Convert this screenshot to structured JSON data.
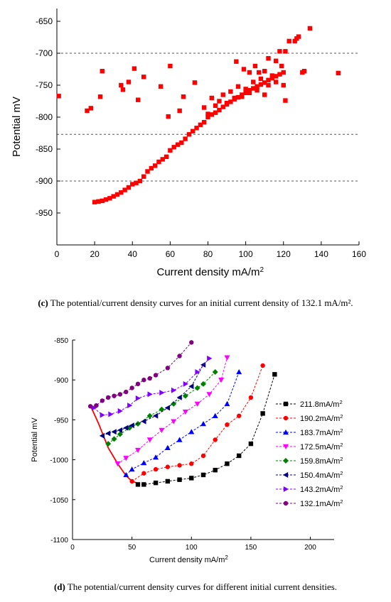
{
  "captions": {
    "c_letter": "(c)",
    "c_text": " The potential/current density curves for an initial current density of 132.1 mA/m².",
    "d_letter": "(d)",
    "d_text": " The potential/current density curves for different initial current densities."
  },
  "chart_data": [
    {
      "type": "scatter",
      "xlabel": "Current density mA/m²",
      "ylabel": "Potential mV",
      "xlim": [
        0,
        160
      ],
      "ylim": [
        -1000,
        -630
      ],
      "xticks": [
        0,
        20,
        40,
        60,
        80,
        100,
        120,
        140,
        160
      ],
      "yticks": [
        -650,
        -700,
        -750,
        -800,
        -850,
        -900,
        -950
      ],
      "reference_lines_y": [
        -700,
        -827,
        -900
      ],
      "marker": "square",
      "color": "#ff0000",
      "points": [
        [
          1,
          -767
        ],
        [
          16,
          -790
        ],
        [
          18,
          -786
        ],
        [
          23,
          -768
        ],
        [
          24,
          -728
        ],
        [
          34,
          -750
        ],
        [
          35,
          -757
        ],
        [
          38,
          -745
        ],
        [
          41,
          -724
        ],
        [
          43,
          -773
        ],
        [
          46,
          -737
        ],
        [
          55,
          -752
        ],
        [
          59,
          -799
        ],
        [
          60,
          -720
        ],
        [
          65,
          -790
        ],
        [
          67,
          -768
        ],
        [
          73,
          -746
        ],
        [
          20,
          -933
        ],
        [
          22,
          -932
        ],
        [
          24,
          -931
        ],
        [
          26,
          -929
        ],
        [
          28,
          -927
        ],
        [
          30,
          -924
        ],
        [
          32,
          -921
        ],
        [
          34,
          -918
        ],
        [
          36,
          -914
        ],
        [
          38,
          -910
        ],
        [
          40,
          -905
        ],
        [
          42,
          -903
        ],
        [
          44,
          -900
        ],
        [
          46,
          -893
        ],
        [
          48,
          -885
        ],
        [
          50,
          -880
        ],
        [
          52,
          -876
        ],
        [
          54,
          -870
        ],
        [
          56,
          -866
        ],
        [
          58,
          -862
        ],
        [
          60,
          -852
        ],
        [
          62,
          -847
        ],
        [
          64,
          -843
        ],
        [
          66,
          -840
        ],
        [
          68,
          -834
        ],
        [
          70,
          -827
        ],
        [
          72,
          -822
        ],
        [
          74,
          -817
        ],
        [
          76,
          -812
        ],
        [
          78,
          -808
        ],
        [
          80,
          -800
        ],
        [
          82,
          -796
        ],
        [
          84,
          -793
        ],
        [
          86,
          -789
        ],
        [
          88,
          -784
        ],
        [
          90,
          -780
        ],
        [
          92,
          -776
        ],
        [
          94,
          -772
        ],
        [
          96,
          -769
        ],
        [
          98,
          -765
        ],
        [
          100,
          -762
        ],
        [
          102,
          -758
        ],
        [
          104,
          -755
        ],
        [
          106,
          -752
        ],
        [
          108,
          -749
        ],
        [
          110,
          -746
        ],
        [
          112,
          -742
        ],
        [
          114,
          -739
        ],
        [
          116,
          -736
        ],
        [
          118,
          -733
        ],
        [
          120,
          -730
        ],
        [
          78,
          -785
        ],
        [
          80,
          -795
        ],
        [
          82,
          -770
        ],
        [
          84,
          -782
        ],
        [
          86,
          -775
        ],
        [
          88,
          -765
        ],
        [
          90,
          -778
        ],
        [
          92,
          -760
        ],
        [
          94,
          -770
        ],
        [
          96,
          -752
        ],
        [
          98,
          -768
        ],
        [
          100,
          -756
        ],
        [
          102,
          -762
        ],
        [
          104,
          -745
        ],
        [
          106,
          -758
        ],
        [
          108,
          -740
        ],
        [
          110,
          -765
        ],
        [
          112,
          -750
        ],
        [
          114,
          -735
        ],
        [
          116,
          -745
        ],
        [
          95,
          -713
        ],
        [
          99,
          -725
        ],
        [
          102,
          -730
        ],
        [
          105,
          -720
        ],
        [
          107,
          -730
        ],
        [
          110,
          -728
        ],
        [
          112,
          -708
        ],
        [
          116,
          -712
        ],
        [
          118,
          -697
        ],
        [
          119,
          -720
        ],
        [
          121,
          -697
        ],
        [
          123,
          -681
        ],
        [
          126,
          -681
        ],
        [
          127,
          -677
        ],
        [
          128,
          -674
        ],
        [
          130,
          -730
        ],
        [
          131,
          -728
        ],
        [
          134,
          -661
        ],
        [
          149,
          -731
        ],
        [
          121,
          -774
        ],
        [
          120,
          -750
        ]
      ]
    },
    {
      "type": "line",
      "xlabel": "Current density mA/m²",
      "ylabel": "Potential mV",
      "xlim": [
        0,
        220
      ],
      "ylim": [
        -1100,
        -850
      ],
      "xticks": [
        0,
        50,
        100,
        150,
        200
      ],
      "yticks": [
        -850,
        -900,
        -950,
        -1000,
        -1050,
        -1100
      ],
      "envelope": {
        "color": "#ff0000",
        "points": [
          [
            15,
            -932
          ],
          [
            22,
            -955
          ],
          [
            30,
            -985
          ],
          [
            38,
            -1005
          ],
          [
            45,
            -1020
          ],
          [
            50,
            -1027
          ],
          [
            56,
            -1030
          ]
        ]
      },
      "series": [
        {
          "name": "211.8mA/m²",
          "color": "#000000",
          "marker": "square",
          "points": [
            [
              55,
              -1031
            ],
            [
              60,
              -1031
            ],
            [
              70,
              -1029
            ],
            [
              80,
              -1027
            ],
            [
              90,
              -1025
            ],
            [
              100,
              -1023
            ],
            [
              110,
              -1019
            ],
            [
              120,
              -1013
            ],
            [
              130,
              -1005
            ],
            [
              140,
              -995
            ],
            [
              150,
              -980
            ],
            [
              160,
              -942
            ],
            [
              170,
              -893
            ]
          ]
        },
        {
          "name": "190.2mA/m²",
          "color": "#ff0000",
          "marker": "circle",
          "points": [
            [
              50,
              -1027
            ],
            [
              60,
              -1017
            ],
            [
              70,
              -1012
            ],
            [
              80,
              -1009
            ],
            [
              90,
              -1007
            ],
            [
              100,
              -1005
            ],
            [
              110,
              -995
            ],
            [
              120,
              -975
            ],
            [
              130,
              -956
            ],
            [
              140,
              -945
            ],
            [
              150,
              -922
            ],
            [
              160,
              -882
            ]
          ]
        },
        {
          "name": "183.7mA/m²",
          "color": "#0000ff",
          "marker": "triangle-up",
          "points": [
            [
              45,
              -1019
            ],
            [
              50,
              -1012
            ],
            [
              60,
              -1004
            ],
            [
              70,
              -997
            ],
            [
              80,
              -985
            ],
            [
              90,
              -975
            ],
            [
              100,
              -965
            ],
            [
              110,
              -955
            ],
            [
              120,
              -945
            ],
            [
              130,
              -930
            ],
            [
              140,
              -890
            ]
          ]
        },
        {
          "name": "172.5mA/m²",
          "color": "#ff00ff",
          "marker": "triangle-down",
          "points": [
            [
              38,
              -1005
            ],
            [
              45,
              -998
            ],
            [
              55,
              -988
            ],
            [
              65,
              -975
            ],
            [
              75,
              -963
            ],
            [
              85,
              -952
            ],
            [
              95,
              -940
            ],
            [
              105,
              -930
            ],
            [
              115,
              -918
            ],
            [
              125,
              -900
            ],
            [
              130,
              -872
            ]
          ]
        },
        {
          "name": "159.8mA/m²",
          "color": "#008000",
          "marker": "diamond",
          "points": [
            [
              30,
              -980
            ],
            [
              35,
              -974
            ],
            [
              40,
              -968
            ],
            [
              48,
              -960
            ],
            [
              55,
              -955
            ],
            [
              65,
              -945
            ],
            [
              75,
              -937
            ],
            [
              85,
              -930
            ],
            [
              95,
              -920
            ],
            [
              105,
              -910
            ],
            [
              110,
              -905
            ],
            [
              120,
              -890
            ]
          ]
        },
        {
          "name": "150.4mA/m²",
          "color": "#000080",
          "marker": "triangle-left",
          "points": [
            [
              25,
              -970
            ],
            [
              30,
              -967
            ],
            [
              35,
              -965
            ],
            [
              40,
              -963
            ],
            [
              45,
              -960
            ],
            [
              50,
              -957
            ],
            [
              60,
              -952
            ],
            [
              70,
              -945
            ],
            [
              80,
              -935
            ],
            [
              90,
              -922
            ],
            [
              100,
              -908
            ],
            [
              110,
              -881
            ]
          ]
        },
        {
          "name": "143.2mA/m²",
          "color": "#8000ff",
          "marker": "triangle-right",
          "points": [
            [
              18,
              -935
            ],
            [
              25,
              -944
            ],
            [
              32,
              -943
            ],
            [
              40,
              -939
            ],
            [
              48,
              -932
            ],
            [
              55,
              -923
            ],
            [
              65,
              -918
            ],
            [
              75,
              -916
            ],
            [
              85,
              -913
            ],
            [
              95,
              -905
            ],
            [
              105,
              -890
            ],
            [
              115,
              -873
            ]
          ]
        },
        {
          "name": "132.1mA/m²",
          "color": "#800080",
          "marker": "circle",
          "points": [
            [
              15,
              -933
            ],
            [
              20,
              -932
            ],
            [
              25,
              -926
            ],
            [
              30,
              -922
            ],
            [
              35,
              -920
            ],
            [
              40,
              -918
            ],
            [
              45,
              -915
            ],
            [
              50,
              -910
            ],
            [
              55,
              -905
            ],
            [
              60,
              -900
            ],
            [
              65,
              -898
            ],
            [
              70,
              -894
            ],
            [
              80,
              -885
            ],
            [
              90,
              -870
            ],
            [
              100,
              -853
            ]
          ]
        }
      ]
    }
  ]
}
